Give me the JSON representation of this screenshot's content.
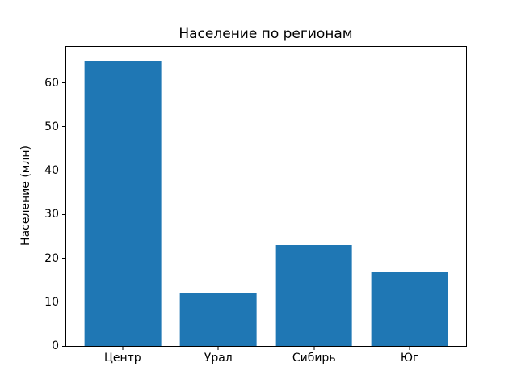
{
  "chart_data": {
    "type": "bar",
    "title": "Население по регионам",
    "categories": [
      "Центр",
      "Урал",
      "Сибирь",
      "Юг"
    ],
    "values": [
      65,
      12,
      23,
      17
    ],
    "xlabel": "",
    "ylabel": "Население (млн)",
    "ylim": [
      0,
      68.25
    ],
    "yticks": [
      0,
      10,
      20,
      30,
      40,
      50,
      60
    ],
    "bar_color": "#1f77b4",
    "grid": false,
    "legend": null
  }
}
